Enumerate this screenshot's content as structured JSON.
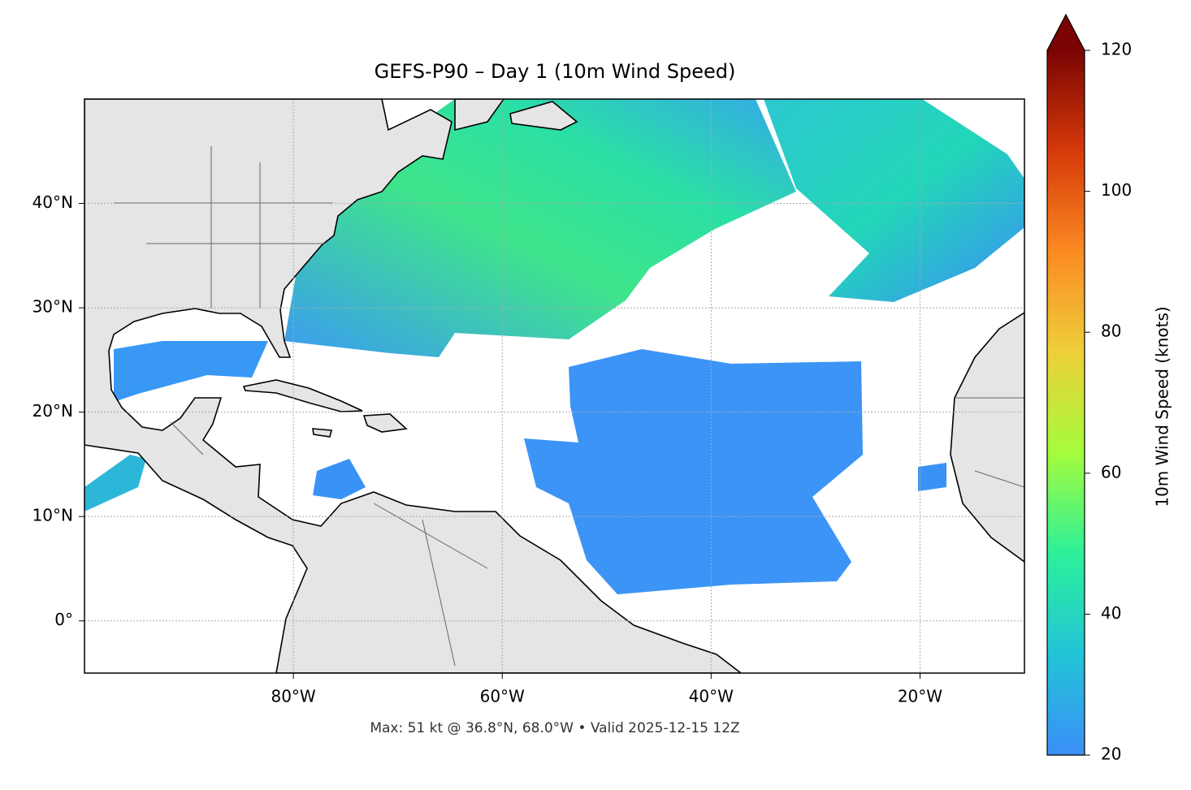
{
  "map": {
    "title": "GEFS-P90 – Day 1 (10m Wind Speed)",
    "note": "Max: 51 kt @ 36.8°N, 68.0°W • Valid 2025-12-15 12Z",
    "xlim": [
      -100,
      -10
    ],
    "ylim": [
      -5,
      50
    ],
    "xticks": [
      {
        "value": -80,
        "label": "80°W"
      },
      {
        "value": -60,
        "label": "60°W"
      },
      {
        "value": -40,
        "label": "40°W"
      },
      {
        "value": -20,
        "label": "20°W"
      }
    ],
    "yticks": [
      {
        "value": 0,
        "label": "0°"
      },
      {
        "value": 10,
        "label": "10°N"
      },
      {
        "value": 20,
        "label": "20°N"
      },
      {
        "value": 30,
        "label": "30°N"
      },
      {
        "value": 40,
        "label": "40°N"
      }
    ],
    "grid": true,
    "colorbar": {
      "label": "10m Wind Speed (knots)",
      "lim": [
        20,
        120
      ],
      "ticks": [
        20,
        40,
        60,
        80,
        100,
        120
      ],
      "colors": [
        "#3b8ff7",
        "#22c4d8",
        "#2cf09a",
        "#a4fc3c",
        "#eecf3a",
        "#fb8a22",
        "#d63a0a",
        "#7a0403"
      ]
    }
  }
}
